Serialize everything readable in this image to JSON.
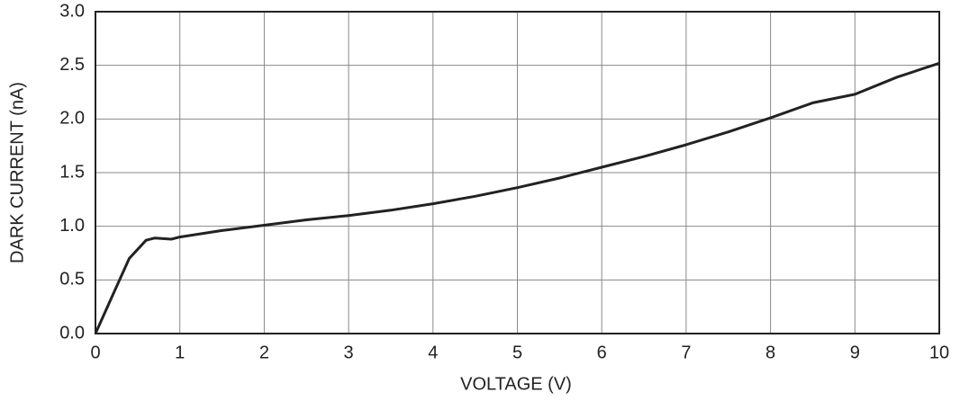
{
  "chart_data": {
    "type": "line",
    "xlabel": "VOLTAGE (V)",
    "ylabel": "DARK CURRENT (nA)",
    "x": [
      0,
      0.2,
      0.4,
      0.6,
      0.7,
      0.8,
      0.9,
      1.0,
      1.5,
      2,
      2.5,
      3,
      3.5,
      4,
      4.5,
      5,
      5.5,
      6,
      6.5,
      7,
      7.5,
      8,
      8.5,
      9,
      9.5,
      10
    ],
    "values": [
      0,
      0.35,
      0.7,
      0.87,
      0.89,
      0.885,
      0.88,
      0.9,
      0.96,
      1.01,
      1.06,
      1.1,
      1.15,
      1.21,
      1.28,
      1.36,
      1.45,
      1.55,
      1.65,
      1.76,
      1.88,
      2.01,
      2.15,
      2.23,
      2.39,
      2.52
    ],
    "color": "#222222",
    "xlim": [
      0,
      10
    ],
    "xticks": [
      0,
      1,
      2,
      3,
      4,
      5,
      6,
      7,
      8,
      9,
      10
    ],
    "ylim": [
      0,
      3
    ],
    "yticks": [
      {
        "value": 0,
        "label": "0.0"
      },
      0.5,
      {
        "value": 1,
        "label": "1.0"
      },
      1.5,
      {
        "value": 2,
        "label": "2.0"
      },
      2.5,
      {
        "value": 3,
        "label": "3.0"
      }
    ],
    "grid": true
  }
}
